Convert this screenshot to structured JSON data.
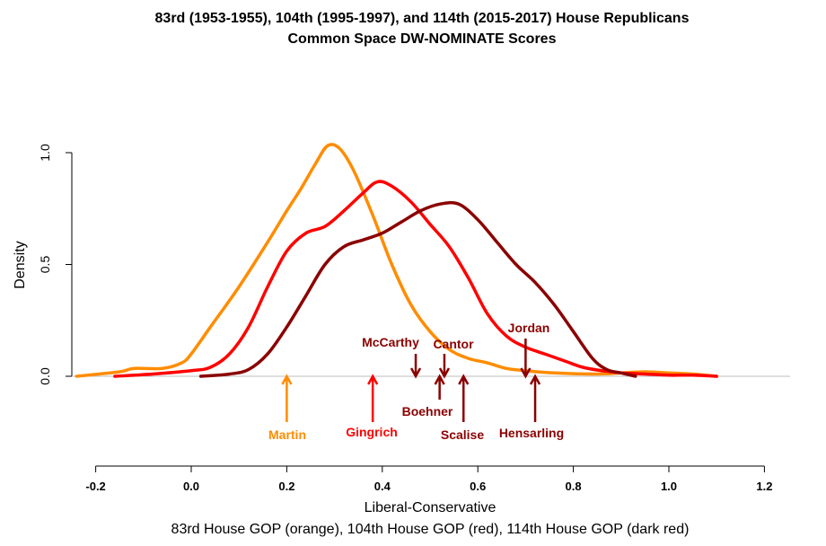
{
  "chart_data": {
    "type": "line",
    "title": "83rd (1953-1955), 104th (1995-1997), and 114th (2015-2017) House Republicans",
    "subtitle": "Common Space DW-NOMINATE Scores",
    "xlabel": "Liberal-Conservative",
    "xlabel2": "83rd House GOP (orange), 104th House GOP (red), 114th House GOP (dark red)",
    "ylabel": "Density",
    "xlim": [
      -0.25,
      1.25
    ],
    "ylim": [
      0,
      1.05
    ],
    "x_ticks": [
      "-0.2",
      "0.0",
      "0.2",
      "0.4",
      "0.6",
      "0.8",
      "1.0",
      "1.2"
    ],
    "y_ticks": [
      "0.0",
      "0.5",
      "1.0"
    ],
    "grid": false,
    "series": [
      {
        "color": "#FF8C00",
        "points": [
          [
            -0.24,
            0.0
          ],
          [
            -0.15,
            0.02
          ],
          [
            -0.12,
            0.035
          ],
          [
            -0.06,
            0.035
          ],
          [
            -0.02,
            0.06
          ],
          [
            0.0,
            0.1
          ],
          [
            0.04,
            0.22
          ],
          [
            0.1,
            0.4
          ],
          [
            0.16,
            0.6
          ],
          [
            0.2,
            0.74
          ],
          [
            0.23,
            0.84
          ],
          [
            0.26,
            0.95
          ],
          [
            0.285,
            1.03
          ],
          [
            0.31,
            1.02
          ],
          [
            0.34,
            0.92
          ],
          [
            0.38,
            0.72
          ],
          [
            0.42,
            0.5
          ],
          [
            0.46,
            0.32
          ],
          [
            0.5,
            0.2
          ],
          [
            0.54,
            0.12
          ],
          [
            0.58,
            0.08
          ],
          [
            0.62,
            0.06
          ],
          [
            0.66,
            0.035
          ],
          [
            0.7,
            0.025
          ],
          [
            0.76,
            0.015
          ],
          [
            0.85,
            0.01
          ],
          [
            0.9,
            0.015
          ],
          [
            0.95,
            0.02
          ],
          [
            1.0,
            0.015
          ],
          [
            1.05,
            0.01
          ],
          [
            1.1,
            0.0
          ]
        ]
      },
      {
        "color": "#FF0000",
        "points": [
          [
            -0.16,
            0.0
          ],
          [
            -0.08,
            0.01
          ],
          [
            0.0,
            0.025
          ],
          [
            0.04,
            0.04
          ],
          [
            0.08,
            0.1
          ],
          [
            0.12,
            0.22
          ],
          [
            0.16,
            0.4
          ],
          [
            0.2,
            0.56
          ],
          [
            0.24,
            0.64
          ],
          [
            0.28,
            0.67
          ],
          [
            0.32,
            0.74
          ],
          [
            0.36,
            0.82
          ],
          [
            0.39,
            0.87
          ],
          [
            0.42,
            0.85
          ],
          [
            0.46,
            0.78
          ],
          [
            0.5,
            0.68
          ],
          [
            0.54,
            0.58
          ],
          [
            0.58,
            0.44
          ],
          [
            0.62,
            0.28
          ],
          [
            0.66,
            0.18
          ],
          [
            0.7,
            0.13
          ],
          [
            0.74,
            0.1
          ],
          [
            0.78,
            0.07
          ],
          [
            0.82,
            0.04
          ],
          [
            0.86,
            0.025
          ],
          [
            0.9,
            0.015
          ],
          [
            0.95,
            0.01
          ],
          [
            1.0,
            0.005
          ],
          [
            1.05,
            0.005
          ],
          [
            1.1,
            0.0
          ]
        ]
      },
      {
        "color": "#8B0000",
        "points": [
          [
            0.02,
            0.0
          ],
          [
            0.08,
            0.01
          ],
          [
            0.12,
            0.03
          ],
          [
            0.16,
            0.1
          ],
          [
            0.2,
            0.22
          ],
          [
            0.24,
            0.36
          ],
          [
            0.28,
            0.5
          ],
          [
            0.32,
            0.58
          ],
          [
            0.36,
            0.61
          ],
          [
            0.4,
            0.64
          ],
          [
            0.44,
            0.69
          ],
          [
            0.48,
            0.74
          ],
          [
            0.52,
            0.77
          ],
          [
            0.56,
            0.77
          ],
          [
            0.6,
            0.7
          ],
          [
            0.64,
            0.6
          ],
          [
            0.68,
            0.5
          ],
          [
            0.72,
            0.42
          ],
          [
            0.76,
            0.32
          ],
          [
            0.8,
            0.2
          ],
          [
            0.84,
            0.08
          ],
          [
            0.87,
            0.03
          ],
          [
            0.9,
            0.015
          ],
          [
            0.93,
            0.0
          ]
        ]
      }
    ],
    "annotations": [
      {
        "label": "Martin",
        "x": 0.2,
        "color": "#FF8C00",
        "direction": "up",
        "text_pos": "below"
      },
      {
        "label": "Gingrich",
        "x": 0.38,
        "color": "#FF0000",
        "direction": "up",
        "text_pos": "below"
      },
      {
        "label": "McCarthy",
        "x": 0.47,
        "color": "#8B0000",
        "direction": "down",
        "text_pos": "above"
      },
      {
        "label": "Cantor",
        "x": 0.53,
        "color": "#8B0000",
        "direction": "down",
        "text_pos": "above"
      },
      {
        "label": "Boehner",
        "x": 0.52,
        "color": "#8B0000",
        "direction": "up",
        "text_pos": "below"
      },
      {
        "label": "Scalise",
        "x": 0.57,
        "color": "#8B0000",
        "direction": "up",
        "text_pos": "below"
      },
      {
        "label": "Jordan",
        "x": 0.7,
        "color": "#8B0000",
        "direction": "down",
        "text_pos": "above"
      },
      {
        "label": "Hensarling",
        "x": 0.72,
        "color": "#8B0000",
        "direction": "up",
        "text_pos": "below"
      }
    ]
  }
}
